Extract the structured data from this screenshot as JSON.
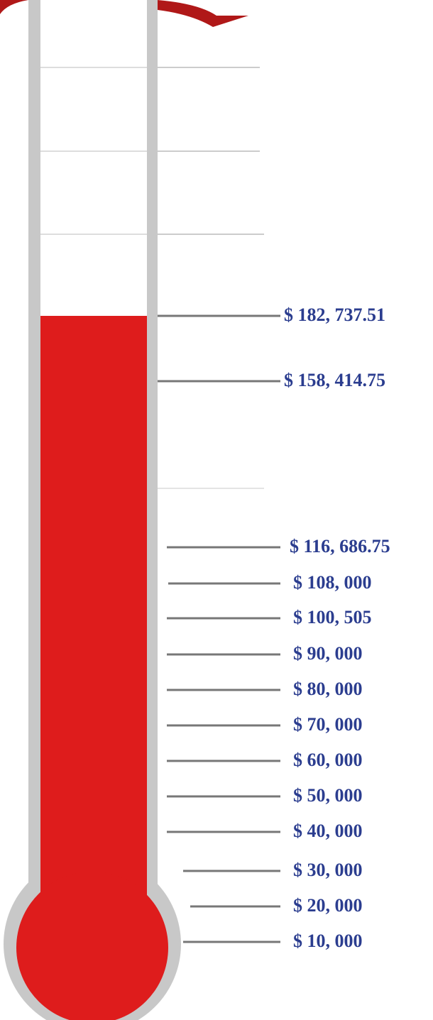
{
  "markers": [
    {
      "label": "$ 182, 737.51"
    },
    {
      "label": "$ 158, 414.75"
    },
    {
      "label": "$ 116, 686.75"
    },
    {
      "label": "$ 108, 000"
    },
    {
      "label": "$ 100, 505"
    },
    {
      "label": "$ 90, 000"
    },
    {
      "label": "$ 80, 000"
    },
    {
      "label": "$ 70, 000"
    },
    {
      "label": "$ 60, 000"
    },
    {
      "label": "$ 50, 000"
    },
    {
      "label": "$ 40, 000"
    },
    {
      "label": "$ 30, 000"
    },
    {
      "label": "$ 20, 000"
    },
    {
      "label": "$ 10, 000"
    }
  ]
}
